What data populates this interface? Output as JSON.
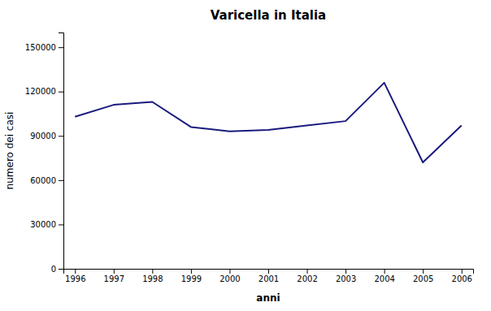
{
  "chart_data": {
    "type": "line",
    "title": "Varicella in Italia",
    "xlabel": "anni",
    "ylabel": "numero dei casi",
    "x": [
      1996,
      1997,
      1998,
      1999,
      2000,
      2001,
      2002,
      2003,
      2004,
      2005,
      2006
    ],
    "values": [
      103000,
      111000,
      113000,
      96000,
      93000,
      94000,
      97000,
      100000,
      126000,
      72000,
      97000
    ],
    "color": "#1a1a7e",
    "xlim": [
      1995.7,
      2006.3
    ],
    "xticks": [
      1996,
      1997,
      1998,
      1999,
      2000,
      2001,
      2002,
      2003,
      2004,
      2005,
      2006
    ],
    "ylim": [
      0,
      160000
    ],
    "yticks": [
      0,
      30000,
      60000,
      90000,
      120000,
      150000
    ],
    "grid": false
  }
}
